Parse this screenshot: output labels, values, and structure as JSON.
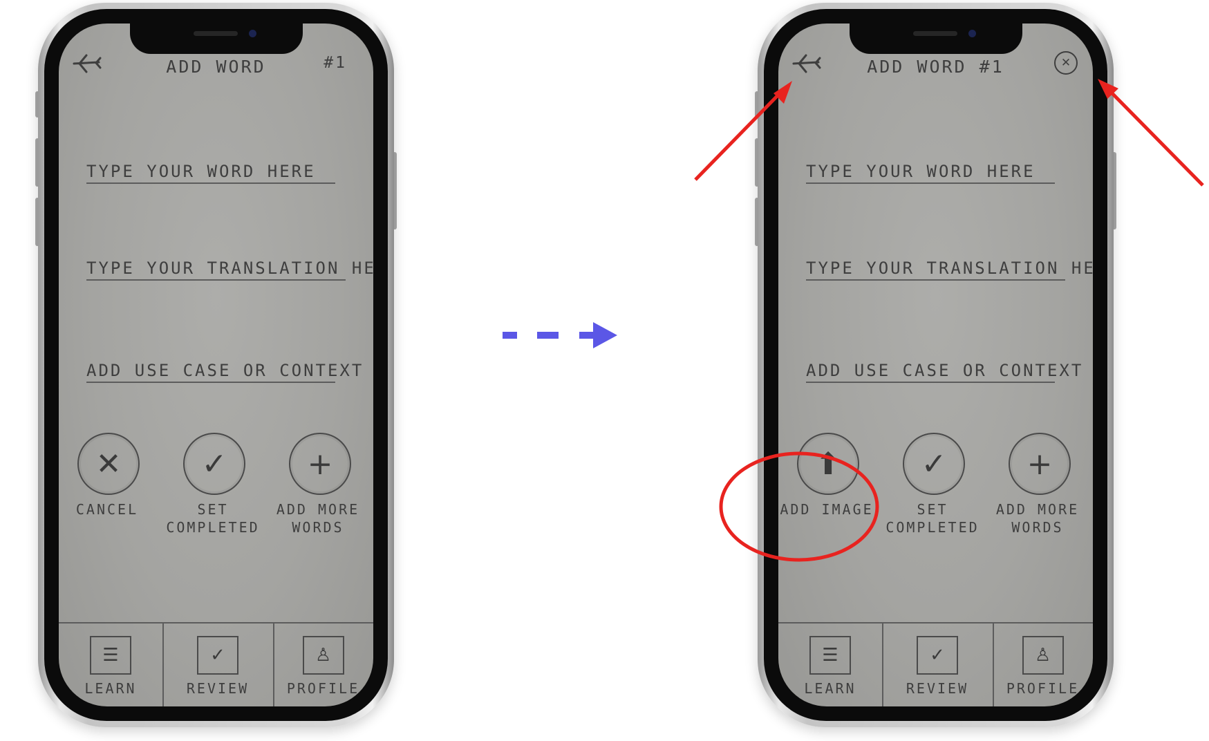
{
  "before": {
    "title": "ADD WORD",
    "word_number": "#1",
    "fields": [
      "TYPE YOUR WORD HERE",
      "TYPE YOUR TRANSLATION HERE",
      "ADD USE CASE OR CONTEXT"
    ],
    "buttons": [
      {
        "label": "CANCEL",
        "glyph": "✕"
      },
      {
        "label": "SET COMPLETED",
        "glyph": "✓"
      },
      {
        "label": "ADD MORE WORDS",
        "glyph": "+"
      }
    ],
    "tabs": [
      {
        "label": "LEARN",
        "glyph": "☰"
      },
      {
        "label": "REVIEW",
        "glyph": "✓"
      },
      {
        "label": "PROFILE",
        "glyph": "♙"
      }
    ]
  },
  "after": {
    "title": "ADD WORD #1",
    "close_glyph": "✕",
    "fields": [
      "TYPE YOUR WORD HERE",
      "TYPE YOUR TRANSLATION HERE",
      "ADD USE CASE OR CONTEXT"
    ],
    "buttons": [
      {
        "label": "ADD IMAGE",
        "glyph": "⬆"
      },
      {
        "label": "SET COMPLETED",
        "glyph": "✓"
      },
      {
        "label": "ADD MORE WORDS",
        "glyph": "+"
      }
    ],
    "tabs": [
      {
        "label": "LEARN",
        "glyph": "☰"
      },
      {
        "label": "REVIEW",
        "glyph": "✓"
      },
      {
        "label": "PROFILE",
        "glyph": "♙"
      }
    ]
  },
  "colors": {
    "flow_arrow": "#5b57e6",
    "annotation": "#e8231f"
  }
}
